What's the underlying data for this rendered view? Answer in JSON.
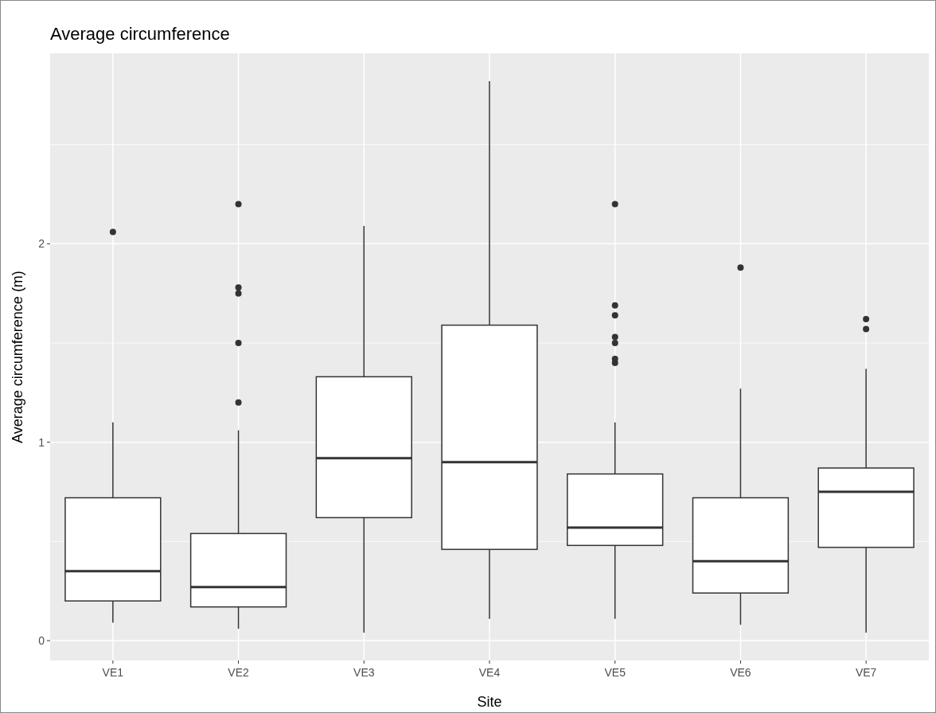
{
  "chart_data": {
    "type": "box",
    "title": "Average circumference",
    "xlabel": "Site",
    "ylabel": "Average circumference (m)",
    "categories": [
      "VE1",
      "VE2",
      "VE3",
      "VE4",
      "VE5",
      "VE6",
      "VE7"
    ],
    "boxes": [
      {
        "low": 0.09,
        "q1": 0.2,
        "median": 0.35,
        "q3": 0.72,
        "high": 1.1,
        "outliers": [
          2.06
        ]
      },
      {
        "low": 0.06,
        "q1": 0.17,
        "median": 0.27,
        "q3": 0.54,
        "high": 1.06,
        "outliers": [
          2.2,
          1.78,
          1.75,
          1.5,
          1.2
        ]
      },
      {
        "low": 0.04,
        "q1": 0.62,
        "median": 0.92,
        "q3": 1.33,
        "high": 2.09
      },
      {
        "low": 0.11,
        "q1": 0.46,
        "median": 0.9,
        "q3": 1.59,
        "high": 2.82
      },
      {
        "low": 0.11,
        "q1": 0.48,
        "median": 0.57,
        "q3": 0.84,
        "high": 1.1,
        "outliers": [
          2.2,
          1.69,
          1.64,
          1.53,
          1.5,
          1.42,
          1.4
        ]
      },
      {
        "low": 0.08,
        "q1": 0.24,
        "median": 0.4,
        "q3": 0.72,
        "high": 1.27,
        "outliers": [
          1.88
        ]
      },
      {
        "low": 0.04,
        "q1": 0.47,
        "median": 0.75,
        "q3": 0.87,
        "high": 1.37,
        "outliers": [
          1.62,
          1.57
        ]
      }
    ],
    "ylim": [
      -0.1,
      2.96
    ],
    "yticks": [
      0,
      {
        "value": 0.5,
        "label": null
      },
      1,
      {
        "value": 1.5,
        "label": null
      },
      2,
      {
        "value": 2.5,
        "label": null
      }
    ],
    "grid": true
  }
}
